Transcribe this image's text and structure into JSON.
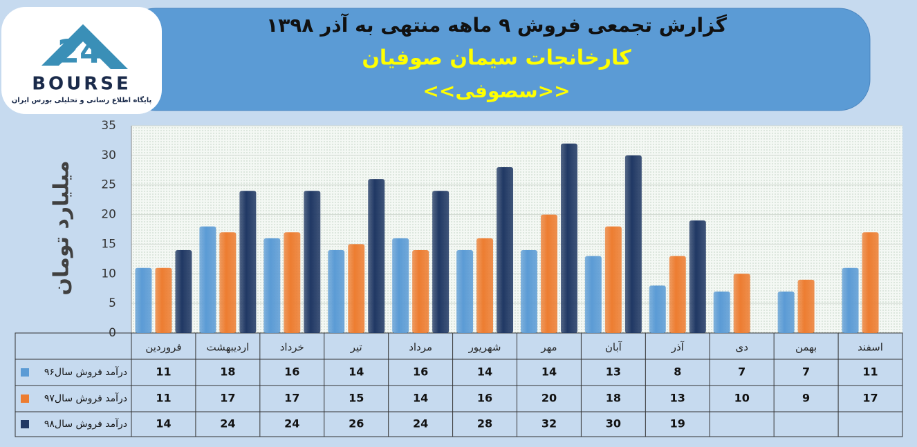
{
  "chart_data": {
    "type": "bar",
    "title": "گزارش تجمعی فروش ۹ ماهه منتهی به آذر ۱۳۹۸",
    "subtitle": "کارخانجات سیمان صوفیان",
    "symbol": "<<سصوفی>>",
    "y_label": "میلیارد تومان",
    "logo": {
      "number": "24",
      "name": "BOURSE",
      "tagline": "پایگاه اطلاع رسانی و تحلیلی بورس ایران"
    },
    "categories": [
      "فروردین",
      "اردیبهشت",
      "خرداد",
      "تیر",
      "مرداد",
      "شهریور",
      "مهر",
      "آبان",
      "آذر",
      "دی",
      "بهمن",
      "اسفند"
    ],
    "series": [
      {
        "name": "درآمد فروش سال۹۶",
        "color": "#5b9bd5",
        "values": [
          11,
          18,
          16,
          14,
          16,
          14,
          14,
          13,
          8,
          7,
          7,
          11
        ]
      },
      {
        "name": "درآمد فروش سال۹۷",
        "color": "#ed7d31",
        "values": [
          11,
          17,
          17,
          15,
          14,
          16,
          20,
          18,
          13,
          10,
          9,
          17
        ]
      },
      {
        "name": "درآمد فروش سال۹۸",
        "color": "#203864",
        "values": [
          14,
          24,
          24,
          26,
          24,
          28,
          32,
          30,
          19,
          null,
          null,
          null
        ]
      }
    ],
    "ylim": [
      0,
      35
    ],
    "yticks": [
      0,
      5,
      10,
      15,
      20,
      25,
      30,
      35
    ],
    "grid": true
  }
}
